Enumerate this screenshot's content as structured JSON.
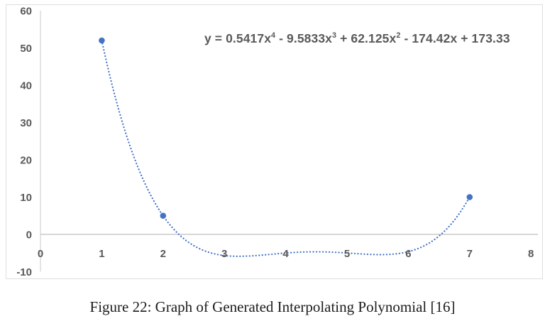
{
  "figure": {
    "caption": "Figure 22: Graph of Generated Interpolating Polynomial [16]"
  },
  "chart_data": {
    "type": "scatter",
    "title": "",
    "equation": {
      "plain": "y = 0.5417x^4 - 9.5833x^3 + 62.125x^2 - 174.42x + 173.33",
      "segments": [
        {
          "text": "y = 0.5417x"
        },
        {
          "sup": "4"
        },
        {
          "text": " - 9.5833x"
        },
        {
          "sup": "3"
        },
        {
          "text": " + 62.125x"
        },
        {
          "sup": "2"
        },
        {
          "text": " - 174.42x + 173.33"
        }
      ],
      "color": "#595959"
    },
    "points": [
      [
        1,
        52
      ],
      [
        2,
        5
      ],
      [
        7,
        10
      ]
    ],
    "trendline": {
      "style": "dotted",
      "color": "#4472C4",
      "coefficients_desc_power": [
        0.5417,
        -9.5833,
        62.125,
        -174.42,
        173.33
      ],
      "domain": [
        1,
        7
      ]
    },
    "marker_color": "#4472C4",
    "x_ticks": [
      "0",
      "1",
      "2",
      "3",
      "4",
      "5",
      "6",
      "7",
      "8"
    ],
    "y_ticks": [
      "60",
      "50",
      "40",
      "30",
      "20",
      "10",
      "0",
      "-10"
    ],
    "xlim": [
      0,
      8
    ],
    "ylim": [
      -10,
      60
    ],
    "grid": "zero-line-only",
    "legend": "none",
    "axis_label_color": "#595959",
    "axis_line_color": "#d9d9d9",
    "zero_line_color": "#c8c8c8",
    "frame_color": "#dedede",
    "xlabel": "",
    "ylabel": ""
  }
}
